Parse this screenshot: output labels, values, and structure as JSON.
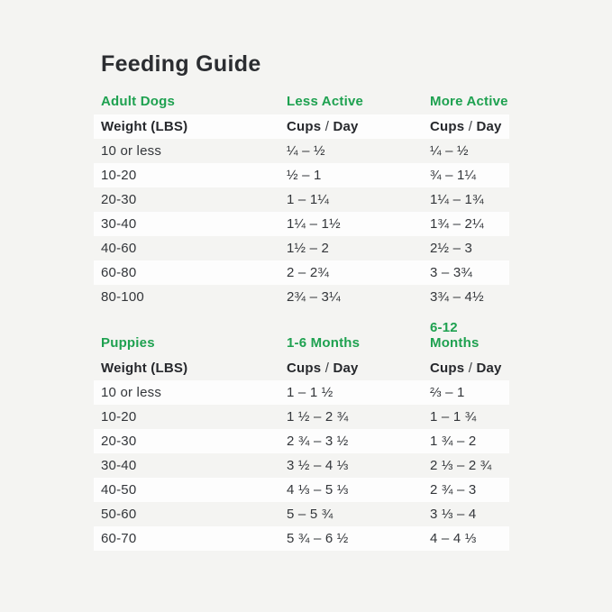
{
  "page": {
    "title": "Feeding Guide",
    "background_color": "#f4f4f2",
    "row_highlight_color": "#fdfdfd",
    "accent_green": "#1ea150",
    "text_color": "#2e3033"
  },
  "labels": {
    "cups": "Cups",
    "slash": "/",
    "day": "Day"
  },
  "tables": [
    {
      "section": "Adult Dogs",
      "col2_header": "Less Active",
      "col3_header": "More Active",
      "weight_header": "Weight (LBS)",
      "rows": [
        {
          "weight": "10 or less",
          "col2": "¼ – ½",
          "col3": "¼ – ½"
        },
        {
          "weight": "10-20",
          "col2": "½ – 1",
          "col3": "¾ – 1¼"
        },
        {
          "weight": "20-30",
          "col2": "1 – 1¼",
          "col3": "1¼ – 1¾"
        },
        {
          "weight": "30-40",
          "col2": "1¼ – 1½",
          "col3": "1¾ – 2¼"
        },
        {
          "weight": "40-60",
          "col2": "1½ – 2",
          "col3": "2½ – 3"
        },
        {
          "weight": "60-80",
          "col2": "2 – 2¾",
          "col3": "3 – 3¾"
        },
        {
          "weight": "80-100",
          "col2": "2¾ – 3¼",
          "col3": "3¾ – 4½"
        }
      ]
    },
    {
      "section": "Puppies",
      "col2_header": "1-6 Months",
      "col3_header": "6-12 Months",
      "weight_header": "Weight (LBS)",
      "rows": [
        {
          "weight": "10 or less",
          "col2": "1 – 1 ½",
          "col3": "⅔ – 1"
        },
        {
          "weight": "10-20",
          "col2": "1 ½ – 2 ¾",
          "col3": "1 – 1 ¾"
        },
        {
          "weight": "20-30",
          "col2": "2 ¾ – 3 ½",
          "col3": "1 ¾ – 2"
        },
        {
          "weight": "30-40",
          "col2": "3 ½ – 4 ⅓",
          "col3": "2 ⅓ – 2 ¾"
        },
        {
          "weight": "40-50",
          "col2": "4 ⅓ – 5 ⅓",
          "col3": "2 ¾ – 3"
        },
        {
          "weight": "50-60",
          "col2": "5 – 5 ¾",
          "col3": "3 ⅓ – 4"
        },
        {
          "weight": "60-70",
          "col2": "5 ¾ – 6 ½",
          "col3": "4 – 4 ⅓"
        }
      ]
    }
  ]
}
